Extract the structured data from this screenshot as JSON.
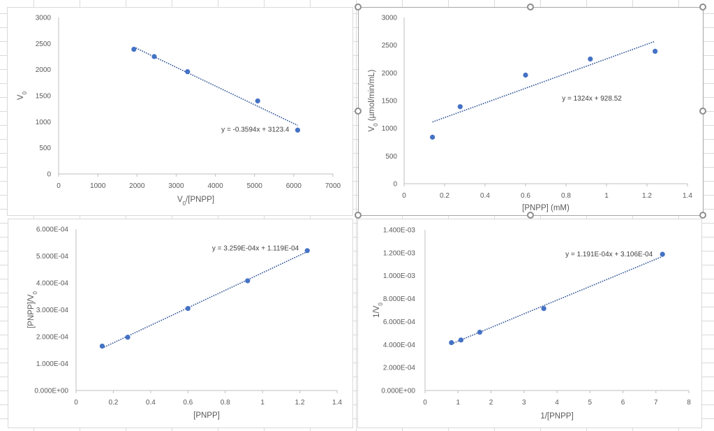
{
  "colors": {
    "marker": "#4472c4",
    "trendline": "#2f5597",
    "axis": "#bfbfbf",
    "text": "#595959"
  },
  "chart_data": [
    {
      "id": "eadie-hofstee",
      "type": "scatter",
      "title": "",
      "xlabel_main": "V",
      "xlabel_sub": "0",
      "xlabel_rest": "/[PNPP]",
      "ylabel_main": "V",
      "ylabel_sub": "0",
      "ylabel_rest": "",
      "xlim": [
        0,
        7000
      ],
      "ylim": [
        0,
        3000
      ],
      "xticks": [
        0,
        1000,
        2000,
        3000,
        4000,
        5000,
        6000,
        7000
      ],
      "xtick_labels": [
        "0",
        "1000",
        "2000",
        "3000",
        "4000",
        "5000",
        "6000",
        "7000"
      ],
      "yticks": [
        0,
        500,
        1000,
        1500,
        2000,
        2500,
        3000
      ],
      "ytick_labels": [
        "0",
        "500",
        "1000",
        "1500",
        "2000",
        "2500",
        "3000"
      ],
      "grid": false,
      "points": [
        {
          "x": 1920,
          "y": 2390
        },
        {
          "x": 2440,
          "y": 2250
        },
        {
          "x": 3290,
          "y": 1960
        },
        {
          "x": 5080,
          "y": 1400
        },
        {
          "x": 6100,
          "y": 840
        }
      ],
      "trendline": {
        "slope": -0.3594,
        "intercept": 3123.4,
        "x_from": 1920,
        "x_to": 6100,
        "label": "y = -0.3594x + 3123.4"
      }
    },
    {
      "id": "michaelis-menten",
      "type": "scatter",
      "title": "",
      "xlabel_main": "[PNPP] (mM)",
      "xlabel_sub": "",
      "xlabel_rest": "",
      "ylabel_main": "V",
      "ylabel_sub": "0",
      "ylabel_rest": " (µmol/min/mL)",
      "xlim": [
        0,
        1.4
      ],
      "ylim": [
        0,
        3000
      ],
      "xticks": [
        0,
        0.2,
        0.4,
        0.6,
        0.8,
        1,
        1.2,
        1.4
      ],
      "xtick_labels": [
        "0",
        "0.2",
        "0.4",
        "0.6",
        "0.8",
        "1",
        "1.2",
        "1.4"
      ],
      "yticks": [
        0,
        500,
        1000,
        1500,
        2000,
        2500,
        3000
      ],
      "ytick_labels": [
        "0",
        "500",
        "1000",
        "1500",
        "2000",
        "2500",
        "3000"
      ],
      "grid": false,
      "points": [
        {
          "x": 0.14,
          "y": 840
        },
        {
          "x": 0.277,
          "y": 1390
        },
        {
          "x": 0.6,
          "y": 1960
        },
        {
          "x": 0.92,
          "y": 2250
        },
        {
          "x": 1.24,
          "y": 2390
        }
      ],
      "trendline": {
        "slope": 1324,
        "intercept": 928.52,
        "x_from": 0.14,
        "x_to": 1.24,
        "label": "y = 1324x + 928.52"
      }
    },
    {
      "id": "hanes-woolf",
      "type": "scatter",
      "title": "",
      "xlabel_main": "[PNPP]",
      "xlabel_sub": "",
      "xlabel_rest": "",
      "ylabel_main": "[PNPP]/V",
      "ylabel_sub": "0",
      "ylabel_rest": "",
      "xlim": [
        0,
        1.4
      ],
      "ylim": [
        0,
        0.0006
      ],
      "xticks": [
        0,
        0.2,
        0.4,
        0.6,
        0.8,
        1,
        1.2,
        1.4
      ],
      "xtick_labels": [
        "0",
        "0.2",
        "0.4",
        "0.6",
        "0.8",
        "1",
        "1.2",
        "1.4"
      ],
      "yticks": [
        0,
        0.0001,
        0.0002,
        0.0003,
        0.0004,
        0.0005,
        0.0006
      ],
      "ytick_labels": [
        "0.000E+00",
        "1.000E-04",
        "2.000E-04",
        "3.000E-04",
        "4.000E-04",
        "5.000E-04",
        "6.000E-04"
      ],
      "grid": false,
      "points": [
        {
          "x": 0.14,
          "y": 0.000165
        },
        {
          "x": 0.277,
          "y": 0.000198
        },
        {
          "x": 0.6,
          "y": 0.000305
        },
        {
          "x": 0.92,
          "y": 0.000408
        },
        {
          "x": 1.24,
          "y": 0.00052
        }
      ],
      "trendline": {
        "slope": 0.0003259,
        "intercept": 0.0001119,
        "x_from": 0.14,
        "x_to": 1.24,
        "label": "y = 3.259E-04x + 1.119E-04"
      }
    },
    {
      "id": "lineweaver-burk",
      "type": "scatter",
      "title": "",
      "xlabel_main": "1/[PNPP]",
      "xlabel_sub": "",
      "xlabel_rest": "",
      "ylabel_main": "1/V",
      "ylabel_sub": "0",
      "ylabel_rest": "",
      "xlim": [
        0,
        8
      ],
      "ylim": [
        0,
        0.0014
      ],
      "xticks": [
        0,
        1,
        2,
        3,
        4,
        5,
        6,
        7,
        8
      ],
      "xtick_labels": [
        "0",
        "1",
        "2",
        "3",
        "4",
        "5",
        "6",
        "7",
        "8"
      ],
      "yticks": [
        0,
        0.0002,
        0.0004,
        0.0006,
        0.0008,
        0.001,
        0.0012,
        0.0014
      ],
      "ytick_labels": [
        "0.000E+00",
        "2.000E-04",
        "4.000E-04",
        "6.000E-04",
        "8.000E-04",
        "1.000E-03",
        "1.200E-03",
        "1.400E-03"
      ],
      "grid": false,
      "points": [
        {
          "x": 0.8,
          "y": 0.000417
        },
        {
          "x": 1.09,
          "y": 0.00044
        },
        {
          "x": 1.66,
          "y": 0.000508
        },
        {
          "x": 3.6,
          "y": 0.000714
        },
        {
          "x": 7.2,
          "y": 0.001187
        }
      ],
      "trendline": {
        "slope": 0.0001191,
        "intercept": 0.0003106,
        "x_from": 0.8,
        "x_to": 7.2,
        "label": "y = 1.191E-04x + 3.106E-04"
      }
    }
  ]
}
